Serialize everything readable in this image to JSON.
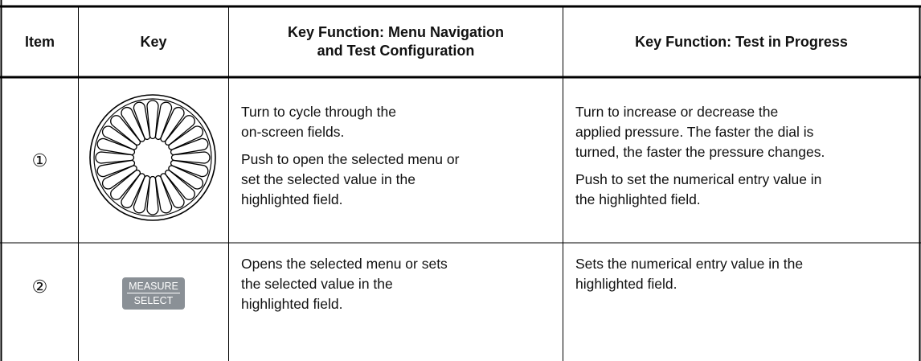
{
  "table": {
    "header": [
      "Item",
      "Key",
      "Key Function: Menu Navigation and Test Configuration",
      "Key Function: Test in Progress"
    ],
    "rows": [
      {
        "item": "①",
        "menu": [
          [
            "Turn to cycle through the",
            "on-screen fields."
          ],
          [
            "Push to open the selected menu or",
            "set the selected value in the",
            "highlighted field."
          ]
        ],
        "test": [
          [
            "Turn to increase or decrease the",
            "applied pressure. The faster the dial is",
            "turned, the faster the pressure changes."
          ],
          [
            "Push to set the numerical entry value in",
            "the highlighted field."
          ]
        ]
      },
      {
        "item": "②",
        "key": [
          "MEASURE",
          "SELECT"
        ],
        "menu": [
          [
            "Opens the selected menu or sets",
            "the selected value in the",
            "highlighted field."
          ]
        ],
        "test": [
          [
            "Sets the numerical entry value in the",
            "highlighted field."
          ]
        ]
      }
    ]
  }
}
